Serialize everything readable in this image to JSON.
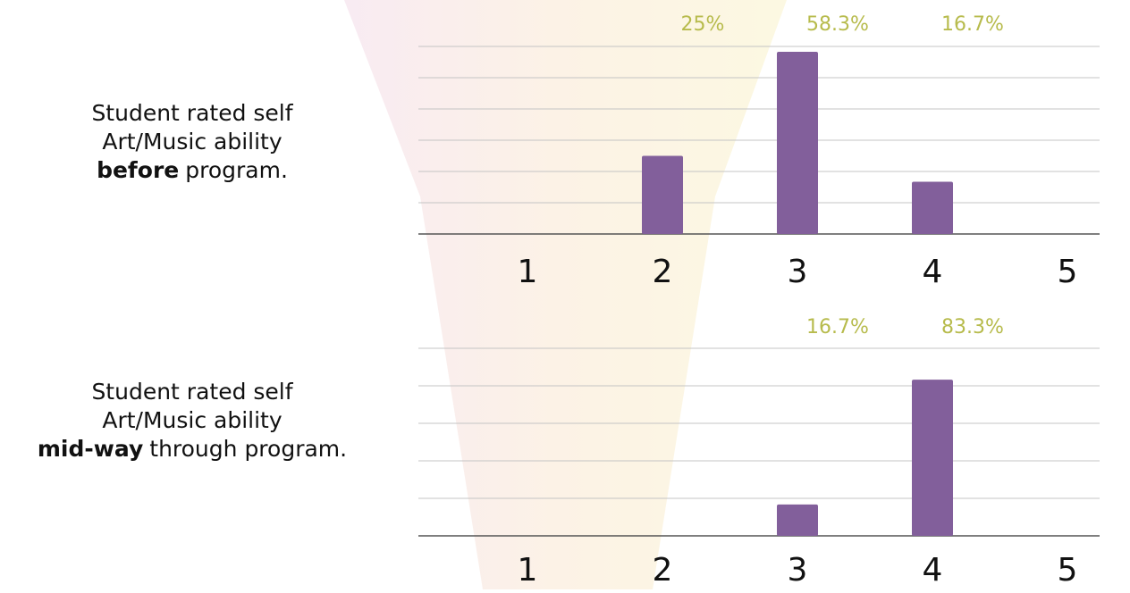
{
  "chart_data": [
    {
      "type": "bar",
      "label_lines": [
        "Student rated self",
        "Art/Music ability"
      ],
      "label_bold": "before",
      "label_rest": "program.",
      "categories": [
        "1",
        "2",
        "3",
        "4",
        "5"
      ],
      "values": [
        null,
        25,
        58.3,
        16.7,
        null
      ],
      "value_labels": [
        null,
        "25%",
        "58.3%",
        "16.7%",
        null
      ],
      "color": "#825f9b",
      "label_color": "#b7bb4c",
      "ylim": [
        0,
        60
      ],
      "yticks": [
        0,
        10,
        20,
        30,
        40,
        50,
        60
      ],
      "grid": true
    },
    {
      "type": "bar",
      "label_lines": [
        "Student rated self",
        "Art/Music ability"
      ],
      "label_bold": "mid-way",
      "label_rest": "through program.",
      "categories": [
        "1",
        "2",
        "3",
        "4",
        "5"
      ],
      "values": [
        null,
        null,
        16.7,
        83.3,
        null
      ],
      "value_labels": [
        null,
        null,
        "16.7%",
        "83.3%",
        null
      ],
      "color": "#825f9b",
      "label_color": "#b7bb4c",
      "ylim": [
        0,
        100
      ],
      "yticks": [
        0,
        20,
        40,
        60,
        80,
        100
      ],
      "grid": true
    }
  ]
}
